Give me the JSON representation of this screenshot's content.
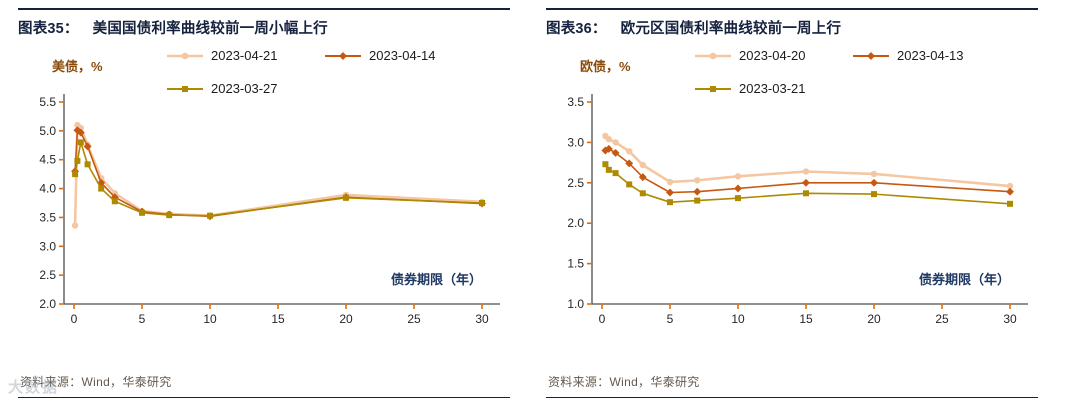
{
  "colors": {
    "border": "#15213D",
    "title": "#15213D",
    "ylabel": "#8A4A0B",
    "source": "#66594E",
    "tick": "#E36C0A",
    "axis": "#4D4D4D",
    "xlabel_annotation": "#1F3864",
    "watermark": "#9AA7B0"
  },
  "watermark": "大数据",
  "chart_data": [
    {
      "type": "line",
      "title_prefix": "图表35：",
      "title": "美国国债利率曲线较前一周小幅上行",
      "ylabel": "美债，%",
      "xlabel": "债券期限（年）",
      "source": "资料来源：Wind，华泰研究",
      "legend_position": "top",
      "grid": false,
      "ylim": [
        2.0,
        5.5
      ],
      "ytick_step": 0.5,
      "xmax": 30,
      "xticks": [
        0,
        5,
        10,
        15,
        20,
        25,
        30
      ],
      "x": [
        0.08,
        0.25,
        0.5,
        1,
        2,
        3,
        5,
        7,
        10,
        20,
        30
      ],
      "series": [
        {
          "name": "2023-04-21",
          "color": "#F4C7A2",
          "marker": "circle",
          "width": 2.6,
          "values": [
            3.36,
            5.1,
            5.05,
            4.76,
            4.18,
            3.92,
            3.61,
            3.56,
            3.53,
            3.89,
            3.77
          ]
        },
        {
          "name": "2023-04-14",
          "color": "#C65911",
          "marker": "diamond",
          "width": 1.6,
          "values": [
            4.3,
            5.01,
            4.97,
            4.73,
            4.1,
            3.85,
            3.6,
            3.55,
            3.52,
            3.85,
            3.74
          ]
        },
        {
          "name": "2023-03-27",
          "color": "#AD8A00",
          "marker": "square",
          "width": 1.6,
          "values": [
            4.25,
            4.48,
            4.8,
            4.42,
            4.0,
            3.78,
            3.58,
            3.54,
            3.53,
            3.84,
            3.75
          ]
        }
      ]
    },
    {
      "type": "line",
      "title_prefix": "图表36：",
      "title": "欧元区国债利率曲线较前一周上行",
      "ylabel": "欧债，%",
      "xlabel": "债券期限（年）",
      "source": "资料来源：Wind，华泰研究",
      "legend_position": "top",
      "grid": false,
      "ylim": [
        1.0,
        3.5
      ],
      "ytick_step": 0.5,
      "xmax": 30,
      "xticks": [
        0,
        5,
        10,
        15,
        20,
        25,
        30
      ],
      "x": [
        0.25,
        0.5,
        1,
        2,
        3,
        5,
        7,
        10,
        15,
        20,
        30
      ],
      "series": [
        {
          "name": "2023-04-20",
          "color": "#F4C7A2",
          "marker": "circle",
          "width": 2.6,
          "values": [
            3.08,
            3.04,
            3.0,
            2.89,
            2.72,
            2.51,
            2.53,
            2.58,
            2.64,
            2.61,
            2.46
          ]
        },
        {
          "name": "2023-04-13",
          "color": "#C65911",
          "marker": "diamond",
          "width": 1.6,
          "values": [
            2.9,
            2.92,
            2.87,
            2.74,
            2.57,
            2.38,
            2.39,
            2.43,
            2.5,
            2.5,
            2.39
          ]
        },
        {
          "name": "2023-03-21",
          "color": "#AD8A00",
          "marker": "square",
          "width": 1.6,
          "values": [
            2.73,
            2.66,
            2.62,
            2.48,
            2.37,
            2.26,
            2.28,
            2.31,
            2.37,
            2.36,
            2.24
          ]
        }
      ]
    }
  ]
}
